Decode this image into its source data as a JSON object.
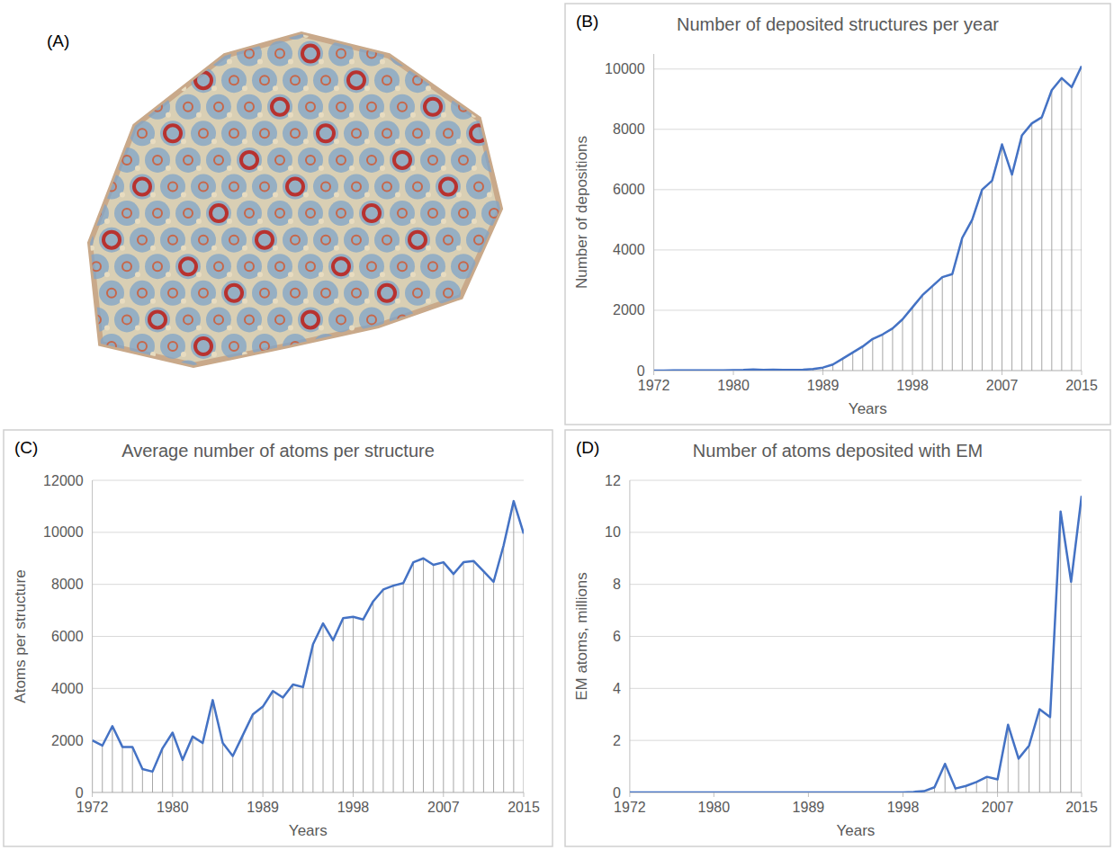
{
  "image_panel": {
    "label": "(A)"
  },
  "chart_data": [
    {
      "type": "line",
      "panel_label": "(B)",
      "title": "Number of deposited structures per year",
      "x_label": "Years",
      "y_label": "Number of depositions",
      "color": "#4472c4",
      "grid": true,
      "x": [
        1972,
        1973,
        1974,
        1975,
        1976,
        1977,
        1978,
        1979,
        1980,
        1981,
        1982,
        1983,
        1984,
        1985,
        1986,
        1987,
        1988,
        1989,
        1990,
        1991,
        1992,
        1993,
        1994,
        1995,
        1996,
        1997,
        1998,
        1999,
        2000,
        2001,
        2002,
        2003,
        2004,
        2005,
        2006,
        2007,
        2008,
        2009,
        2010,
        2011,
        2012,
        2013,
        2014,
        2015
      ],
      "values": [
        0,
        0,
        5,
        5,
        10,
        10,
        10,
        10,
        15,
        20,
        40,
        20,
        30,
        20,
        20,
        30,
        50,
        100,
        200,
        400,
        600,
        800,
        1050,
        1200,
        1400,
        1700,
        2100,
        2500,
        2800,
        3100,
        3200,
        4400,
        5000,
        6000,
        6300,
        7500,
        6500,
        7800,
        8200,
        8400,
        9300,
        9700,
        9400,
        10100
      ],
      "xlim": [
        1972,
        2015
      ],
      "xticks": [
        1972,
        1980,
        1989,
        1998,
        2007,
        2015
      ],
      "ylim": [
        0,
        10500
      ],
      "yticks": [
        0,
        2000,
        4000,
        6000,
        8000,
        10000
      ]
    },
    {
      "type": "line",
      "panel_label": "(C)",
      "title": "Average number of atoms per structure",
      "x_label": "Years",
      "y_label": "Atoms per structure",
      "color": "#4472c4",
      "grid": true,
      "x": [
        1972,
        1973,
        1974,
        1975,
        1976,
        1977,
        1978,
        1979,
        1980,
        1981,
        1982,
        1983,
        1984,
        1985,
        1986,
        1987,
        1988,
        1989,
        1990,
        1991,
        1992,
        1993,
        1994,
        1995,
        1996,
        1997,
        1998,
        1999,
        2000,
        2001,
        2002,
        2003,
        2004,
        2005,
        2006,
        2007,
        2008,
        2009,
        2010,
        2011,
        2012,
        2013,
        2014,
        2015
      ],
      "values": [
        2000,
        1800,
        2550,
        1750,
        1750,
        900,
        800,
        1700,
        2300,
        1250,
        2150,
        1900,
        3550,
        1900,
        1400,
        2200,
        3000,
        3300,
        3900,
        3650,
        4150,
        4050,
        5700,
        6500,
        5850,
        6700,
        6750,
        6650,
        7350,
        7800,
        7950,
        8050,
        8850,
        9000,
        8750,
        8850,
        8400,
        8850,
        8900,
        8500,
        8100,
        9500,
        11200,
        9950
      ],
      "xlim": [
        1972,
        2015
      ],
      "xticks": [
        1972,
        1980,
        1989,
        1998,
        2007,
        2015
      ],
      "ylim": [
        0,
        12000
      ],
      "yticks": [
        0,
        2000,
        4000,
        6000,
        8000,
        10000,
        12000
      ]
    },
    {
      "type": "line",
      "panel_label": "(D)",
      "title": "Number of atoms deposited with EM",
      "x_label": "Years",
      "y_label": "EM atoms, millions",
      "color": "#4472c4",
      "grid": true,
      "x": [
        1972,
        1973,
        1974,
        1975,
        1976,
        1977,
        1978,
        1979,
        1980,
        1981,
        1982,
        1983,
        1984,
        1985,
        1986,
        1987,
        1988,
        1989,
        1990,
        1991,
        1992,
        1993,
        1994,
        1995,
        1996,
        1997,
        1998,
        1999,
        2000,
        2001,
        2002,
        2003,
        2004,
        2005,
        2006,
        2007,
        2008,
        2009,
        2010,
        2011,
        2012,
        2013,
        2014,
        2015
      ],
      "values": [
        0,
        0,
        0,
        0,
        0,
        0,
        0,
        0,
        0,
        0,
        0,
        0,
        0,
        0,
        0,
        0,
        0,
        0,
        0,
        0,
        0,
        0,
        0,
        0,
        0,
        0,
        0,
        0.02,
        0.05,
        0.2,
        1.1,
        0.15,
        0.25,
        0.4,
        0.6,
        0.5,
        2.6,
        1.3,
        1.8,
        3.2,
        2.9,
        10.8,
        8.1,
        11.4
      ],
      "xlim": [
        1972,
        2015
      ],
      "xticks": [
        1972,
        1980,
        1989,
        1998,
        2007,
        2015
      ],
      "ylim": [
        0,
        12
      ],
      "yticks": [
        0,
        2,
        4,
        6,
        8,
        10,
        12
      ]
    }
  ]
}
